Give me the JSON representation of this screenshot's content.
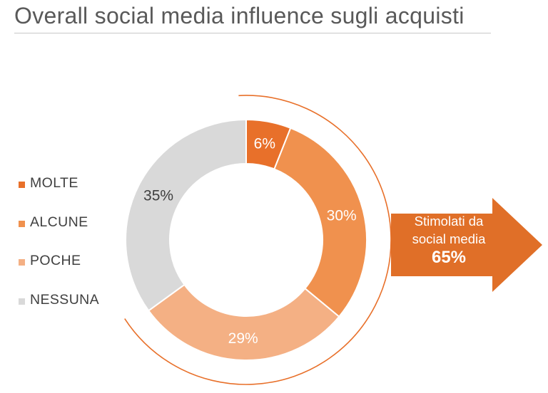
{
  "title": "Overall social media influence sugli acquisti",
  "colors": {
    "molte": "#E8702A",
    "alcune": "#F0914E",
    "poche": "#F4B084",
    "nessuna": "#D9D9D9",
    "bracket": "#E8702A",
    "arrow": "#E06F28"
  },
  "chart_data": {
    "type": "pie",
    "variant": "donut",
    "categories": [
      "MOLTE",
      "ALCUNE",
      "POCHE",
      "NESSUNA"
    ],
    "values": [
      6,
      30,
      29,
      35
    ],
    "labels": [
      "6%",
      "30%",
      "29%",
      "35%"
    ],
    "unit": "%",
    "legend": "left",
    "callout": {
      "text_line1": "Stimolati da",
      "text_line2": "social media",
      "value": "65%"
    }
  }
}
